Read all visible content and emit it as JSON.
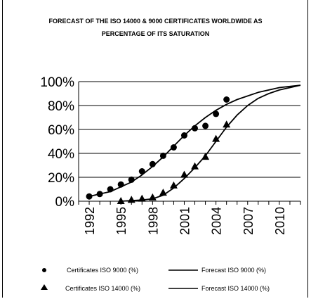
{
  "chart_data": {
    "type": "scatter",
    "title_line1": "FORECAST OF THE ISO 14000 & 9000 CERTIFICATES WORLDWIDE AS",
    "title_line2": "PERCENTAGE OF ITS SATURATION",
    "xlabel": "",
    "ylabel": "",
    "xlim": [
      1991,
      2012
    ],
    "ylim": [
      0,
      100
    ],
    "x_ticks": [
      1992,
      1995,
      1998,
      2001,
      2004,
      2007,
      2010
    ],
    "y_ticks": [
      "0%",
      "20%",
      "40%",
      "60%",
      "80%",
      "100%"
    ],
    "y_tick_values": [
      0,
      20,
      40,
      60,
      80,
      100
    ],
    "grid": true,
    "legend_position": "bottom",
    "series": [
      {
        "name": "Certificates ISO 9000 (%)",
        "kind": "points",
        "marker": "circle",
        "x": [
          1992,
          1993,
          1994,
          1995,
          1996,
          1997,
          1998,
          1999,
          2000,
          2001,
          2002,
          2003,
          2004,
          2005
        ],
        "y": [
          4,
          6,
          10,
          14,
          18,
          25,
          31,
          38,
          45,
          55,
          61,
          63,
          73,
          85
        ]
      },
      {
        "name": "Certificates ISO 14000 (%)",
        "kind": "points",
        "marker": "triangle",
        "x": [
          1995,
          1996,
          1997,
          1998,
          1999,
          2000,
          2001,
          2002,
          2003,
          2004,
          2005
        ],
        "y": [
          0,
          1,
          2,
          3,
          7,
          13,
          22,
          29,
          37,
          52,
          64
        ]
      },
      {
        "name": "Forecast ISO 9000 (%)",
        "kind": "line",
        "x": [
          1992,
          1993,
          1994,
          1995,
          1996,
          1997,
          1998,
          1999,
          2000,
          2001,
          2002,
          2003,
          2004,
          2005,
          2006,
          2007,
          2008,
          2009,
          2010,
          2011,
          2012
        ],
        "y": [
          4,
          6,
          8,
          12,
          16,
          22,
          29,
          37,
          46,
          55,
          63,
          70,
          76,
          81,
          85,
          88,
          91,
          93,
          95,
          96,
          97
        ]
      },
      {
        "name": "Forecast ISO 14000 (%)",
        "kind": "line",
        "x": [
          1995,
          1996,
          1997,
          1998,
          1999,
          2000,
          2001,
          2002,
          2003,
          2004,
          2005,
          2006,
          2007,
          2008,
          2009,
          2010,
          2011,
          2012
        ],
        "y": [
          0,
          0.5,
          1,
          2,
          5,
          11,
          19,
          28,
          38,
          50,
          62,
          72,
          80,
          86,
          90,
          93,
          95,
          97
        ]
      }
    ]
  }
}
